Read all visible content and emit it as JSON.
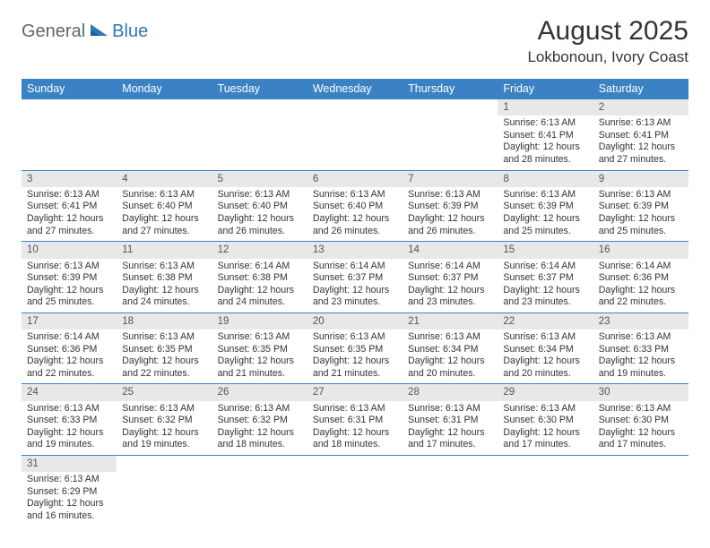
{
  "logo": {
    "text1": "General",
    "text2": "Blue"
  },
  "title": "August 2025",
  "location": "Lokbonoun, Ivory Coast",
  "colors": {
    "header_bg": "#3a82c4",
    "header_text": "#ffffff",
    "daynum_bg": "#e8e8e8",
    "row_border": "#3a82c4",
    "logo_gray": "#5d6770",
    "logo_blue": "#2f78b8"
  },
  "dayHeaders": [
    "Sunday",
    "Monday",
    "Tuesday",
    "Wednesday",
    "Thursday",
    "Friday",
    "Saturday"
  ],
  "weeks": [
    [
      null,
      null,
      null,
      null,
      null,
      {
        "n": "1",
        "sunrise": "6:13 AM",
        "sunset": "6:41 PM",
        "dh": "12",
        "dm": "28"
      },
      {
        "n": "2",
        "sunrise": "6:13 AM",
        "sunset": "6:41 PM",
        "dh": "12",
        "dm": "27"
      }
    ],
    [
      {
        "n": "3",
        "sunrise": "6:13 AM",
        "sunset": "6:41 PM",
        "dh": "12",
        "dm": "27"
      },
      {
        "n": "4",
        "sunrise": "6:13 AM",
        "sunset": "6:40 PM",
        "dh": "12",
        "dm": "27"
      },
      {
        "n": "5",
        "sunrise": "6:13 AM",
        "sunset": "6:40 PM",
        "dh": "12",
        "dm": "26"
      },
      {
        "n": "6",
        "sunrise": "6:13 AM",
        "sunset": "6:40 PM",
        "dh": "12",
        "dm": "26"
      },
      {
        "n": "7",
        "sunrise": "6:13 AM",
        "sunset": "6:39 PM",
        "dh": "12",
        "dm": "26"
      },
      {
        "n": "8",
        "sunrise": "6:13 AM",
        "sunset": "6:39 PM",
        "dh": "12",
        "dm": "25"
      },
      {
        "n": "9",
        "sunrise": "6:13 AM",
        "sunset": "6:39 PM",
        "dh": "12",
        "dm": "25"
      }
    ],
    [
      {
        "n": "10",
        "sunrise": "6:13 AM",
        "sunset": "6:39 PM",
        "dh": "12",
        "dm": "25"
      },
      {
        "n": "11",
        "sunrise": "6:13 AM",
        "sunset": "6:38 PM",
        "dh": "12",
        "dm": "24"
      },
      {
        "n": "12",
        "sunrise": "6:14 AM",
        "sunset": "6:38 PM",
        "dh": "12",
        "dm": "24"
      },
      {
        "n": "13",
        "sunrise": "6:14 AM",
        "sunset": "6:37 PM",
        "dh": "12",
        "dm": "23"
      },
      {
        "n": "14",
        "sunrise": "6:14 AM",
        "sunset": "6:37 PM",
        "dh": "12",
        "dm": "23"
      },
      {
        "n": "15",
        "sunrise": "6:14 AM",
        "sunset": "6:37 PM",
        "dh": "12",
        "dm": "23"
      },
      {
        "n": "16",
        "sunrise": "6:14 AM",
        "sunset": "6:36 PM",
        "dh": "12",
        "dm": "22"
      }
    ],
    [
      {
        "n": "17",
        "sunrise": "6:14 AM",
        "sunset": "6:36 PM",
        "dh": "12",
        "dm": "22"
      },
      {
        "n": "18",
        "sunrise": "6:13 AM",
        "sunset": "6:35 PM",
        "dh": "12",
        "dm": "22"
      },
      {
        "n": "19",
        "sunrise": "6:13 AM",
        "sunset": "6:35 PM",
        "dh": "12",
        "dm": "21"
      },
      {
        "n": "20",
        "sunrise": "6:13 AM",
        "sunset": "6:35 PM",
        "dh": "12",
        "dm": "21"
      },
      {
        "n": "21",
        "sunrise": "6:13 AM",
        "sunset": "6:34 PM",
        "dh": "12",
        "dm": "20"
      },
      {
        "n": "22",
        "sunrise": "6:13 AM",
        "sunset": "6:34 PM",
        "dh": "12",
        "dm": "20"
      },
      {
        "n": "23",
        "sunrise": "6:13 AM",
        "sunset": "6:33 PM",
        "dh": "12",
        "dm": "19"
      }
    ],
    [
      {
        "n": "24",
        "sunrise": "6:13 AM",
        "sunset": "6:33 PM",
        "dh": "12",
        "dm": "19"
      },
      {
        "n": "25",
        "sunrise": "6:13 AM",
        "sunset": "6:32 PM",
        "dh": "12",
        "dm": "19"
      },
      {
        "n": "26",
        "sunrise": "6:13 AM",
        "sunset": "6:32 PM",
        "dh": "12",
        "dm": "18"
      },
      {
        "n": "27",
        "sunrise": "6:13 AM",
        "sunset": "6:31 PM",
        "dh": "12",
        "dm": "18"
      },
      {
        "n": "28",
        "sunrise": "6:13 AM",
        "sunset": "6:31 PM",
        "dh": "12",
        "dm": "17"
      },
      {
        "n": "29",
        "sunrise": "6:13 AM",
        "sunset": "6:30 PM",
        "dh": "12",
        "dm": "17"
      },
      {
        "n": "30",
        "sunrise": "6:13 AM",
        "sunset": "6:30 PM",
        "dh": "12",
        "dm": "17"
      }
    ],
    [
      {
        "n": "31",
        "sunrise": "6:13 AM",
        "sunset": "6:29 PM",
        "dh": "12",
        "dm": "16"
      },
      null,
      null,
      null,
      null,
      null,
      null
    ]
  ]
}
